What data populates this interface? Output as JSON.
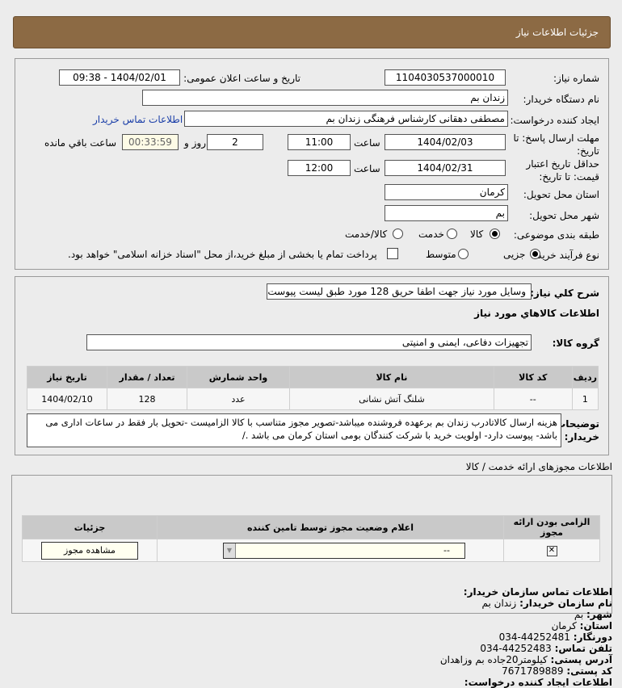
{
  "header": {
    "title": "جزئيات اطلاعات نیاز"
  },
  "form": {
    "need_number_label": "شماره نیاز:",
    "need_number": "1104030537000010",
    "announce_label": "تاریخ و ساعت اعلان عمومی:",
    "announce_value": "1404/02/01 - 09:38",
    "buyer_org_label": "نام دستگاه خریدار:",
    "buyer_org": "زندان بم",
    "creator_label": "ایجاد کننده درخواست:",
    "creator": "مصطفی دهقانی کارشناس فرهنگی زندان بم",
    "contact_link": "اطلاعات تماس خریدار",
    "deadline_label": "مهلت ارسال پاسخ: تا تاریخ:",
    "deadline_date": "1404/02/03",
    "time_label": "ساعت",
    "deadline_time": "11:00",
    "days": "2",
    "days_label": "روز و",
    "remaining": "00:33:59",
    "remaining_label": "ساعت باقي مانده",
    "validity_label": "حداقل تاریخ اعتبار قیمت: تا تاریخ:",
    "validity_date": "1404/02/31",
    "validity_time": "12:00",
    "province_label": "استان محل تحویل:",
    "province": "کرمان",
    "city_label": "شهر محل تحویل:",
    "city": "بم",
    "category_label": "طبقه بندی موضوعی:",
    "category_options": [
      "کالا",
      "خدمت",
      "کالا/خدمت"
    ],
    "category_selected": "کالا",
    "process_label": "نوع فرآیند خرید :",
    "process_options": [
      "جزیی",
      "متوسط"
    ],
    "process_selected": "جزیی",
    "payment_note": "پرداخت تمام یا بخشی از مبلغ خرید،از محل \"اسناد خزانه اسلامی\" خواهد بود."
  },
  "details": {
    "summary_label": "شرح کلي نياز:",
    "summary": "وسایل مورد نیاز جهت اطفا حریق 128 مورد طبق لیست پیوست",
    "goods_heading": "اطلاعات کالاهاي مورد نياز",
    "group_label": "گروه کالا:",
    "group": "تجهیزات دفاعی، ایمنی و امنیتی",
    "table": {
      "headers": [
        "ردیف",
        "کد کالا",
        "نام کالا",
        "واحد شمارش",
        "تعداد / مقدار",
        "تاریخ نیاز"
      ],
      "rows": [
        [
          "1",
          "--",
          "شلنگ آتش نشانی",
          "عدد",
          "128",
          "1404/02/10"
        ]
      ]
    },
    "notes_label": "توضیحات خریدار:",
    "notes": "هزینه ارسال کالاتادرب زندان بم برعهده فروشنده میباشد-تصویر مجوز متناسب با کالا الزامیست -تحویل بار فقط در ساعات اداری می باشد- پیوست دارد- اولویت خرید با شرکت کنندگان بومی استان کرمان می باشد ./"
  },
  "permits": {
    "heading": "اطلاعات مجوزهای ارائه خدمت / کالا",
    "headers": [
      "الزامی بودن ارائه مجوز",
      "اعلام وضعیت مجوز توسط تامین کننده",
      "جزئیات"
    ],
    "status_value": "--",
    "view_button": "مشاهده مجوز"
  },
  "contact": {
    "heading": "اطلاعات تماس سازمان خریدار:",
    "org_label": "نام سازمان خریدار:",
    "org": "زندان بم",
    "city_label": "شهر:",
    "city": "بم",
    "province_label": "استان:",
    "province": "کرمان",
    "fax_label": "دورنگار:",
    "fax": "034-44252481",
    "phone_label": "تلفن تماس:",
    "phone": "034-44252483",
    "address_label": "آدرس پستی:",
    "address": "کیلومتر20جاده بم وزاهدان",
    "postal_label": "کد پستی:",
    "postal": "7671789889",
    "creator_heading": "اطلاعات ایجاد کننده درخواست:"
  }
}
